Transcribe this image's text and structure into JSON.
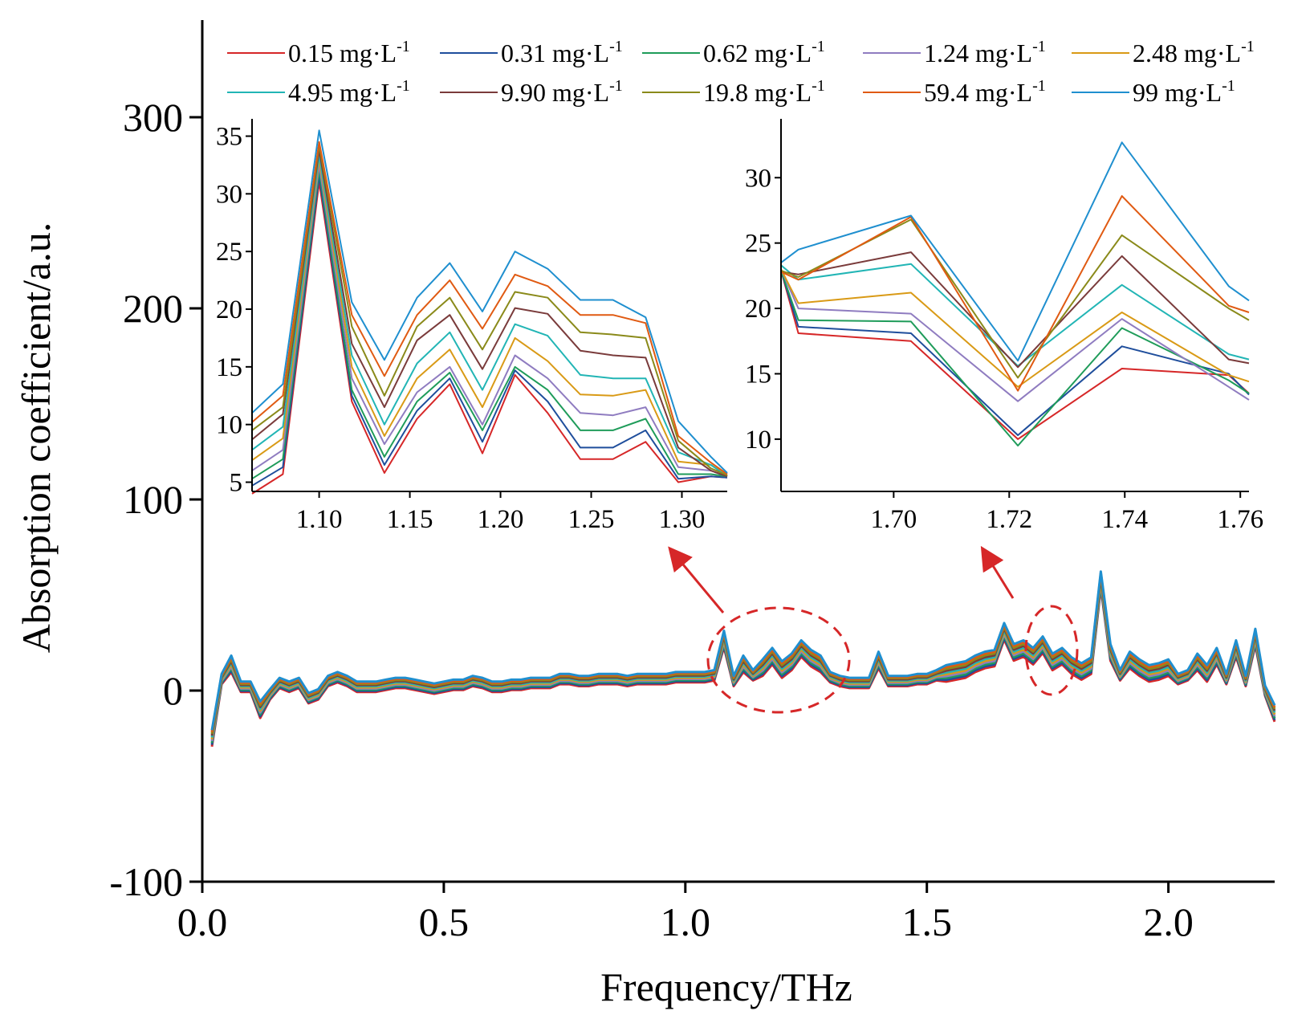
{
  "chart_data": [
    {
      "type": "line",
      "title": "",
      "xlabel": "Frequency/THz",
      "ylabel": "Absorption coefficient/a.u.",
      "xlim": [
        0.0,
        2.22
      ],
      "ylim": [
        -100,
        350
      ],
      "xticks": [
        "0.0",
        "0.5",
        "1.0",
        "1.5",
        "2.0"
      ],
      "yticks": [
        "-100",
        "0",
        "100",
        "200",
        "300"
      ],
      "grid": false,
      "legend_placement": "top",
      "x": [
        0.02,
        0.04,
        0.06,
        0.08,
        0.1,
        0.12,
        0.14,
        0.16,
        0.18,
        0.2,
        0.22,
        0.24,
        0.26,
        0.28,
        0.3,
        0.32,
        0.34,
        0.36,
        0.38,
        0.4,
        0.42,
        0.44,
        0.46,
        0.48,
        0.5,
        0.52,
        0.54,
        0.56,
        0.58,
        0.6,
        0.62,
        0.64,
        0.66,
        0.68,
        0.7,
        0.72,
        0.74,
        0.76,
        0.78,
        0.8,
        0.82,
        0.84,
        0.86,
        0.88,
        0.9,
        0.92,
        0.94,
        0.96,
        0.98,
        1.0,
        1.02,
        1.04,
        1.06,
        1.08,
        1.1,
        1.12,
        1.14,
        1.16,
        1.18,
        1.2,
        1.22,
        1.24,
        1.26,
        1.28,
        1.3,
        1.32,
        1.34,
        1.36,
        1.38,
        1.4,
        1.42,
        1.44,
        1.46,
        1.48,
        1.5,
        1.52,
        1.54,
        1.56,
        1.58,
        1.6,
        1.62,
        1.64,
        1.66,
        1.68,
        1.7,
        1.72,
        1.74,
        1.76,
        1.78,
        1.8,
        1.82,
        1.84,
        1.86,
        1.88,
        1.9,
        1.92,
        1.94,
        1.96,
        1.98,
        2.0,
        2.02,
        2.04,
        2.06,
        2.08,
        2.1,
        2.12,
        2.14,
        2.16,
        2.18,
        2.2,
        2.22
      ],
      "base_curve": [
        -25,
        6,
        14,
        2,
        2,
        -10,
        -2,
        4,
        2,
        4,
        -4,
        -2,
        5,
        7,
        5,
        2,
        2,
        2,
        3,
        4,
        4,
        3,
        2,
        1,
        2,
        3,
        3,
        5,
        4,
        2,
        2,
        3,
        3,
        4,
        4,
        4,
        6,
        6,
        5,
        5,
        6,
        6,
        6,
        5,
        6,
        6,
        6,
        6,
        7,
        7,
        7,
        7,
        8,
        27,
        5,
        14,
        8,
        12,
        18,
        11,
        15,
        22,
        17,
        14,
        7,
        5,
        4,
        4,
        4,
        16,
        5,
        5,
        5,
        6,
        6,
        8,
        9,
        10,
        11,
        14,
        16,
        17,
        31,
        20,
        22,
        18,
        24,
        15,
        18,
        13,
        10,
        13,
        58,
        20,
        8,
        16,
        12,
        9,
        10,
        12,
        6,
        8,
        15,
        9,
        18,
        6,
        22,
        5,
        28,
        0,
        -12
      ],
      "series": [
        {
          "name": "0.15 mg·L-1",
          "color": "#d62728",
          "offset": 0
        },
        {
          "name": "0.31 mg·L-1",
          "color": "#1f4e9c",
          "offset": 0
        },
        {
          "name": "0.62 mg·L-1",
          "color": "#1f9c5a",
          "offset": 0
        },
        {
          "name": "1.24 mg·L-1",
          "color": "#8f7cc0",
          "offset": 0
        },
        {
          "name": "2.48 mg·L-1",
          "color": "#d99a16",
          "offset": 0
        },
        {
          "name": "4.95 mg·L-1",
          "color": "#22b5b5",
          "offset": 0
        },
        {
          "name": "9.90 mg·L-1",
          "color": "#7a3b3b",
          "offset": 0
        },
        {
          "name": "19.8 mg·L-1",
          "color": "#8a8a1a",
          "offset": 0
        },
        {
          "name": "59.4 mg·L-1",
          "color": "#e05a12",
          "offset": 0
        },
        {
          "name": "99 mg·L-1",
          "color": "#1f8fcf",
          "offset": 0
        }
      ]
    },
    {
      "type": "line",
      "title": "",
      "xlabel": "",
      "ylabel": "",
      "xlim": [
        1.063,
        1.325
      ],
      "ylim": [
        4.2,
        36.5
      ],
      "xticks": [
        "1.10",
        "1.15",
        "1.20",
        "1.25",
        "1.30"
      ],
      "yticks": [
        "5",
        "10",
        "15",
        "20",
        "25",
        "30",
        "35"
      ],
      "grid": false,
      "x": [
        1.063,
        1.08,
        1.1,
        1.118,
        1.136,
        1.154,
        1.172,
        1.19,
        1.208,
        1.226,
        1.244,
        1.262,
        1.28,
        1.298,
        1.316,
        1.325
      ],
      "series": [
        {
          "name": "0.15 mg·L-1",
          "values": [
            4.0,
            5.7,
            31.0,
            12.0,
            5.8,
            10.5,
            13.5,
            7.5,
            14.3,
            11.0,
            7.0,
            7.0,
            8.5,
            5.0,
            5.5,
            5.4
          ]
        },
        {
          "name": "0.31 mg·L-1",
          "values": [
            4.7,
            6.3,
            31.5,
            12.5,
            6.5,
            11.2,
            14.0,
            8.5,
            14.7,
            12.0,
            8.0,
            8.0,
            9.5,
            5.3,
            5.5,
            5.4
          ]
        },
        {
          "name": "0.62 mg·L-1",
          "values": [
            5.3,
            7.0,
            32.0,
            13.0,
            7.2,
            12.0,
            14.5,
            9.5,
            15.0,
            13.0,
            9.5,
            9.5,
            10.5,
            5.7,
            5.7,
            5.5
          ]
        },
        {
          "name": "1.24 mg·L-1",
          "values": [
            6.0,
            7.8,
            32.5,
            14.0,
            8.3,
            12.8,
            15.0,
            10.0,
            16.0,
            14.0,
            11.0,
            10.8,
            11.5,
            6.3,
            6.0,
            5.5
          ]
        },
        {
          "name": "2.48 mg·L-1",
          "values": [
            6.9,
            8.8,
            33.0,
            15.0,
            9.0,
            14.0,
            16.5,
            11.5,
            17.5,
            15.5,
            12.6,
            12.5,
            13.0,
            6.8,
            6.5,
            5.6
          ]
        },
        {
          "name": "4.95 mg·L-1",
          "values": [
            7.8,
            9.8,
            33.3,
            16.0,
            10.0,
            15.3,
            18.0,
            13.0,
            18.7,
            17.7,
            14.3,
            14.0,
            14.0,
            7.6,
            6.5,
            5.5
          ]
        },
        {
          "name": "9.90 mg·L-1",
          "values": [
            8.7,
            10.9,
            33.8,
            17.0,
            11.5,
            17.3,
            19.5,
            14.8,
            20.1,
            19.6,
            16.4,
            16.0,
            15.8,
            8.0,
            6.0,
            5.5
          ]
        },
        {
          "name": "19.8 mg·L-1",
          "values": [
            9.5,
            11.5,
            34.2,
            18.5,
            12.5,
            18.5,
            21.0,
            16.5,
            21.5,
            21.0,
            18.0,
            17.8,
            17.5,
            8.6,
            6.2,
            5.6
          ]
        },
        {
          "name": "59.4 mg·L-1",
          "values": [
            10.2,
            12.5,
            34.5,
            19.5,
            14.2,
            19.5,
            22.5,
            18.3,
            23.0,
            22.0,
            19.5,
            19.5,
            18.8,
            9.0,
            6.7,
            5.7
          ]
        },
        {
          "name": "99 mg·L-1",
          "values": [
            11.0,
            13.5,
            35.5,
            20.6,
            15.6,
            21.0,
            24.0,
            19.8,
            25.0,
            23.5,
            20.8,
            20.8,
            19.3,
            10.3,
            7.2,
            5.8
          ]
        }
      ]
    },
    {
      "type": "line",
      "title": "",
      "xlabel": "",
      "ylabel": "",
      "xlim": [
        1.6805,
        1.7615
      ],
      "ylim": [
        6.0,
        34.5
      ],
      "xticks": [
        "1.70",
        "1.72",
        "1.74",
        "1.76"
      ],
      "yticks": [
        "10",
        "15",
        "20",
        "25",
        "30"
      ],
      "grid": false,
      "x": [
        1.6805,
        1.6835,
        1.703,
        1.7215,
        1.7395,
        1.758,
        1.7615
      ],
      "series": [
        {
          "name": "0.15 mg·L-1",
          "values": [
            22.9,
            18.1,
            17.5,
            10.0,
            15.4,
            14.9,
            13.5
          ]
        },
        {
          "name": "0.31 mg·L-1",
          "values": [
            22.9,
            18.6,
            18.1,
            10.3,
            17.1,
            15.0,
            13.4
          ]
        },
        {
          "name": "0.62 mg·L-1",
          "values": [
            22.9,
            19.1,
            19.0,
            9.5,
            18.5,
            14.5,
            13.5
          ]
        },
        {
          "name": "1.24 mg·L-1",
          "values": [
            23.0,
            20.0,
            19.6,
            12.9,
            19.2,
            14.0,
            13.0
          ]
        },
        {
          "name": "2.48 mg·L-1",
          "values": [
            23.0,
            20.4,
            21.2,
            14.0,
            19.7,
            14.9,
            14.4
          ]
        },
        {
          "name": "4.95 mg·L-1",
          "values": [
            23.3,
            22.2,
            23.4,
            15.6,
            21.8,
            16.5,
            16.1
          ]
        },
        {
          "name": "9.90 mg·L-1",
          "values": [
            22.8,
            22.6,
            24.3,
            15.5,
            24.0,
            16.1,
            15.8
          ]
        },
        {
          "name": "19.8 mg·L-1",
          "values": [
            22.9,
            22.4,
            26.8,
            14.7,
            25.6,
            20.0,
            19.1
          ]
        },
        {
          "name": "59.4 mg·L-1",
          "values": [
            22.8,
            22.2,
            27.0,
            13.7,
            28.6,
            20.2,
            19.7
          ]
        },
        {
          "name": "99 mg·L-1",
          "values": [
            23.5,
            24.5,
            27.1,
            16.0,
            32.7,
            21.7,
            20.6
          ]
        }
      ]
    }
  ],
  "legend": {
    "items": [
      {
        "text": "0.15 mg·L",
        "sup": "-1",
        "color": "#d62728"
      },
      {
        "text": "0.31 mg·L",
        "sup": "-1",
        "color": "#1f4e9c"
      },
      {
        "text": "0.62 mg·L",
        "sup": "-1",
        "color": "#1f9c5a"
      },
      {
        "text": "1.24 mg·L",
        "sup": "-1",
        "color": "#8f7cc0"
      },
      {
        "text": "2.48 mg·L",
        "sup": "-1",
        "color": "#d99a16"
      },
      {
        "text": "4.95 mg·L",
        "sup": "-1",
        "color": "#22b5b5"
      },
      {
        "text": "9.90 mg·L",
        "sup": "-1",
        "color": "#7a3b3b"
      },
      {
        "text": "19.8 mg·L",
        "sup": "-1",
        "color": "#8a8a1a"
      },
      {
        "text": "59.4 mg·L",
        "sup": "-1",
        "color": "#e05a12"
      },
      {
        "text": "99 mg·L",
        "sup": "-1",
        "color": "#1f8fcf"
      }
    ]
  },
  "annotations": {
    "highlight_color": "#d62728",
    "zoom_regions": [
      "1.10 THz region",
      "1.72 THz region"
    ]
  }
}
